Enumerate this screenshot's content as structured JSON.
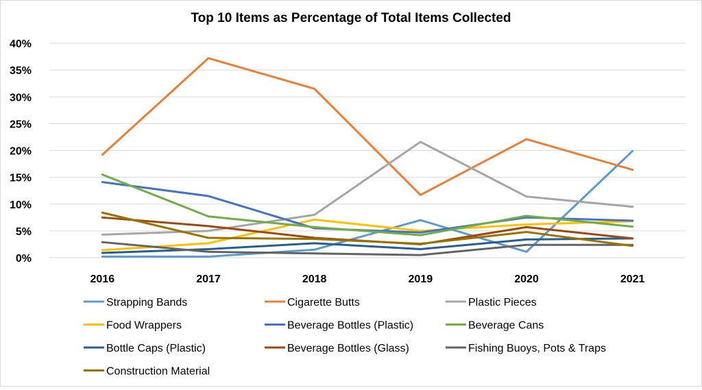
{
  "chart_data": {
    "type": "line",
    "title": "Top 10 Items as Percentage of Total Items Collected",
    "xlabel": "",
    "ylabel": "",
    "categories": [
      "2016",
      "2017",
      "2018",
      "2019",
      "2020",
      "2021"
    ],
    "ylim": [
      0,
      40
    ],
    "yticks": [
      "0%",
      "5%",
      "10%",
      "15%",
      "20%",
      "25%",
      "30%",
      "35%",
      "40%"
    ],
    "grid": true,
    "legend_position": "bottom",
    "series": [
      {
        "name": "Strapping Bands",
        "color": "#5B9BD5",
        "values": [
          0.2,
          0.2,
          1.5,
          7.0,
          1.1,
          19.9
        ]
      },
      {
        "name": "Cigarette Butts",
        "color": "#ED7D31",
        "values": [
          19.2,
          37.2,
          31.5,
          11.7,
          22.1,
          16.4
        ]
      },
      {
        "name": "Plastic Pieces",
        "color": "#A5A5A5",
        "values": [
          4.3,
          5.0,
          8.0,
          21.6,
          11.4,
          9.5
        ]
      },
      {
        "name": "Food Wrappers",
        "color": "#FFC000",
        "values": [
          1.4,
          2.7,
          7.1,
          5.0,
          6.2,
          6.8
        ]
      },
      {
        "name": "Beverage Bottles (Plastic)",
        "color": "#4472C4",
        "values": [
          14.1,
          11.5,
          5.5,
          4.7,
          7.5,
          6.9
        ]
      },
      {
        "name": "Beverage Cans",
        "color": "#70AD47",
        "values": [
          15.5,
          7.7,
          5.7,
          4.2,
          7.8,
          5.8
        ]
      },
      {
        "name": "Bottle Caps (Plastic)",
        "color": "#255E91",
        "values": [
          0.9,
          1.6,
          2.7,
          1.6,
          3.4,
          3.6
        ]
      },
      {
        "name": "Beverage Bottles (Glass)",
        "color": "#9E480E",
        "values": [
          7.5,
          5.9,
          3.7,
          2.5,
          5.7,
          3.6
        ]
      },
      {
        "name": "Fishing Buoys, Pots & Traps",
        "color": "#636363",
        "values": [
          2.9,
          1.1,
          0.8,
          0.5,
          2.4,
          2.4
        ]
      },
      {
        "name": "Construction Material",
        "color": "#997300",
        "values": [
          8.4,
          3.7,
          3.5,
          2.6,
          4.8,
          2.2
        ]
      }
    ]
  }
}
